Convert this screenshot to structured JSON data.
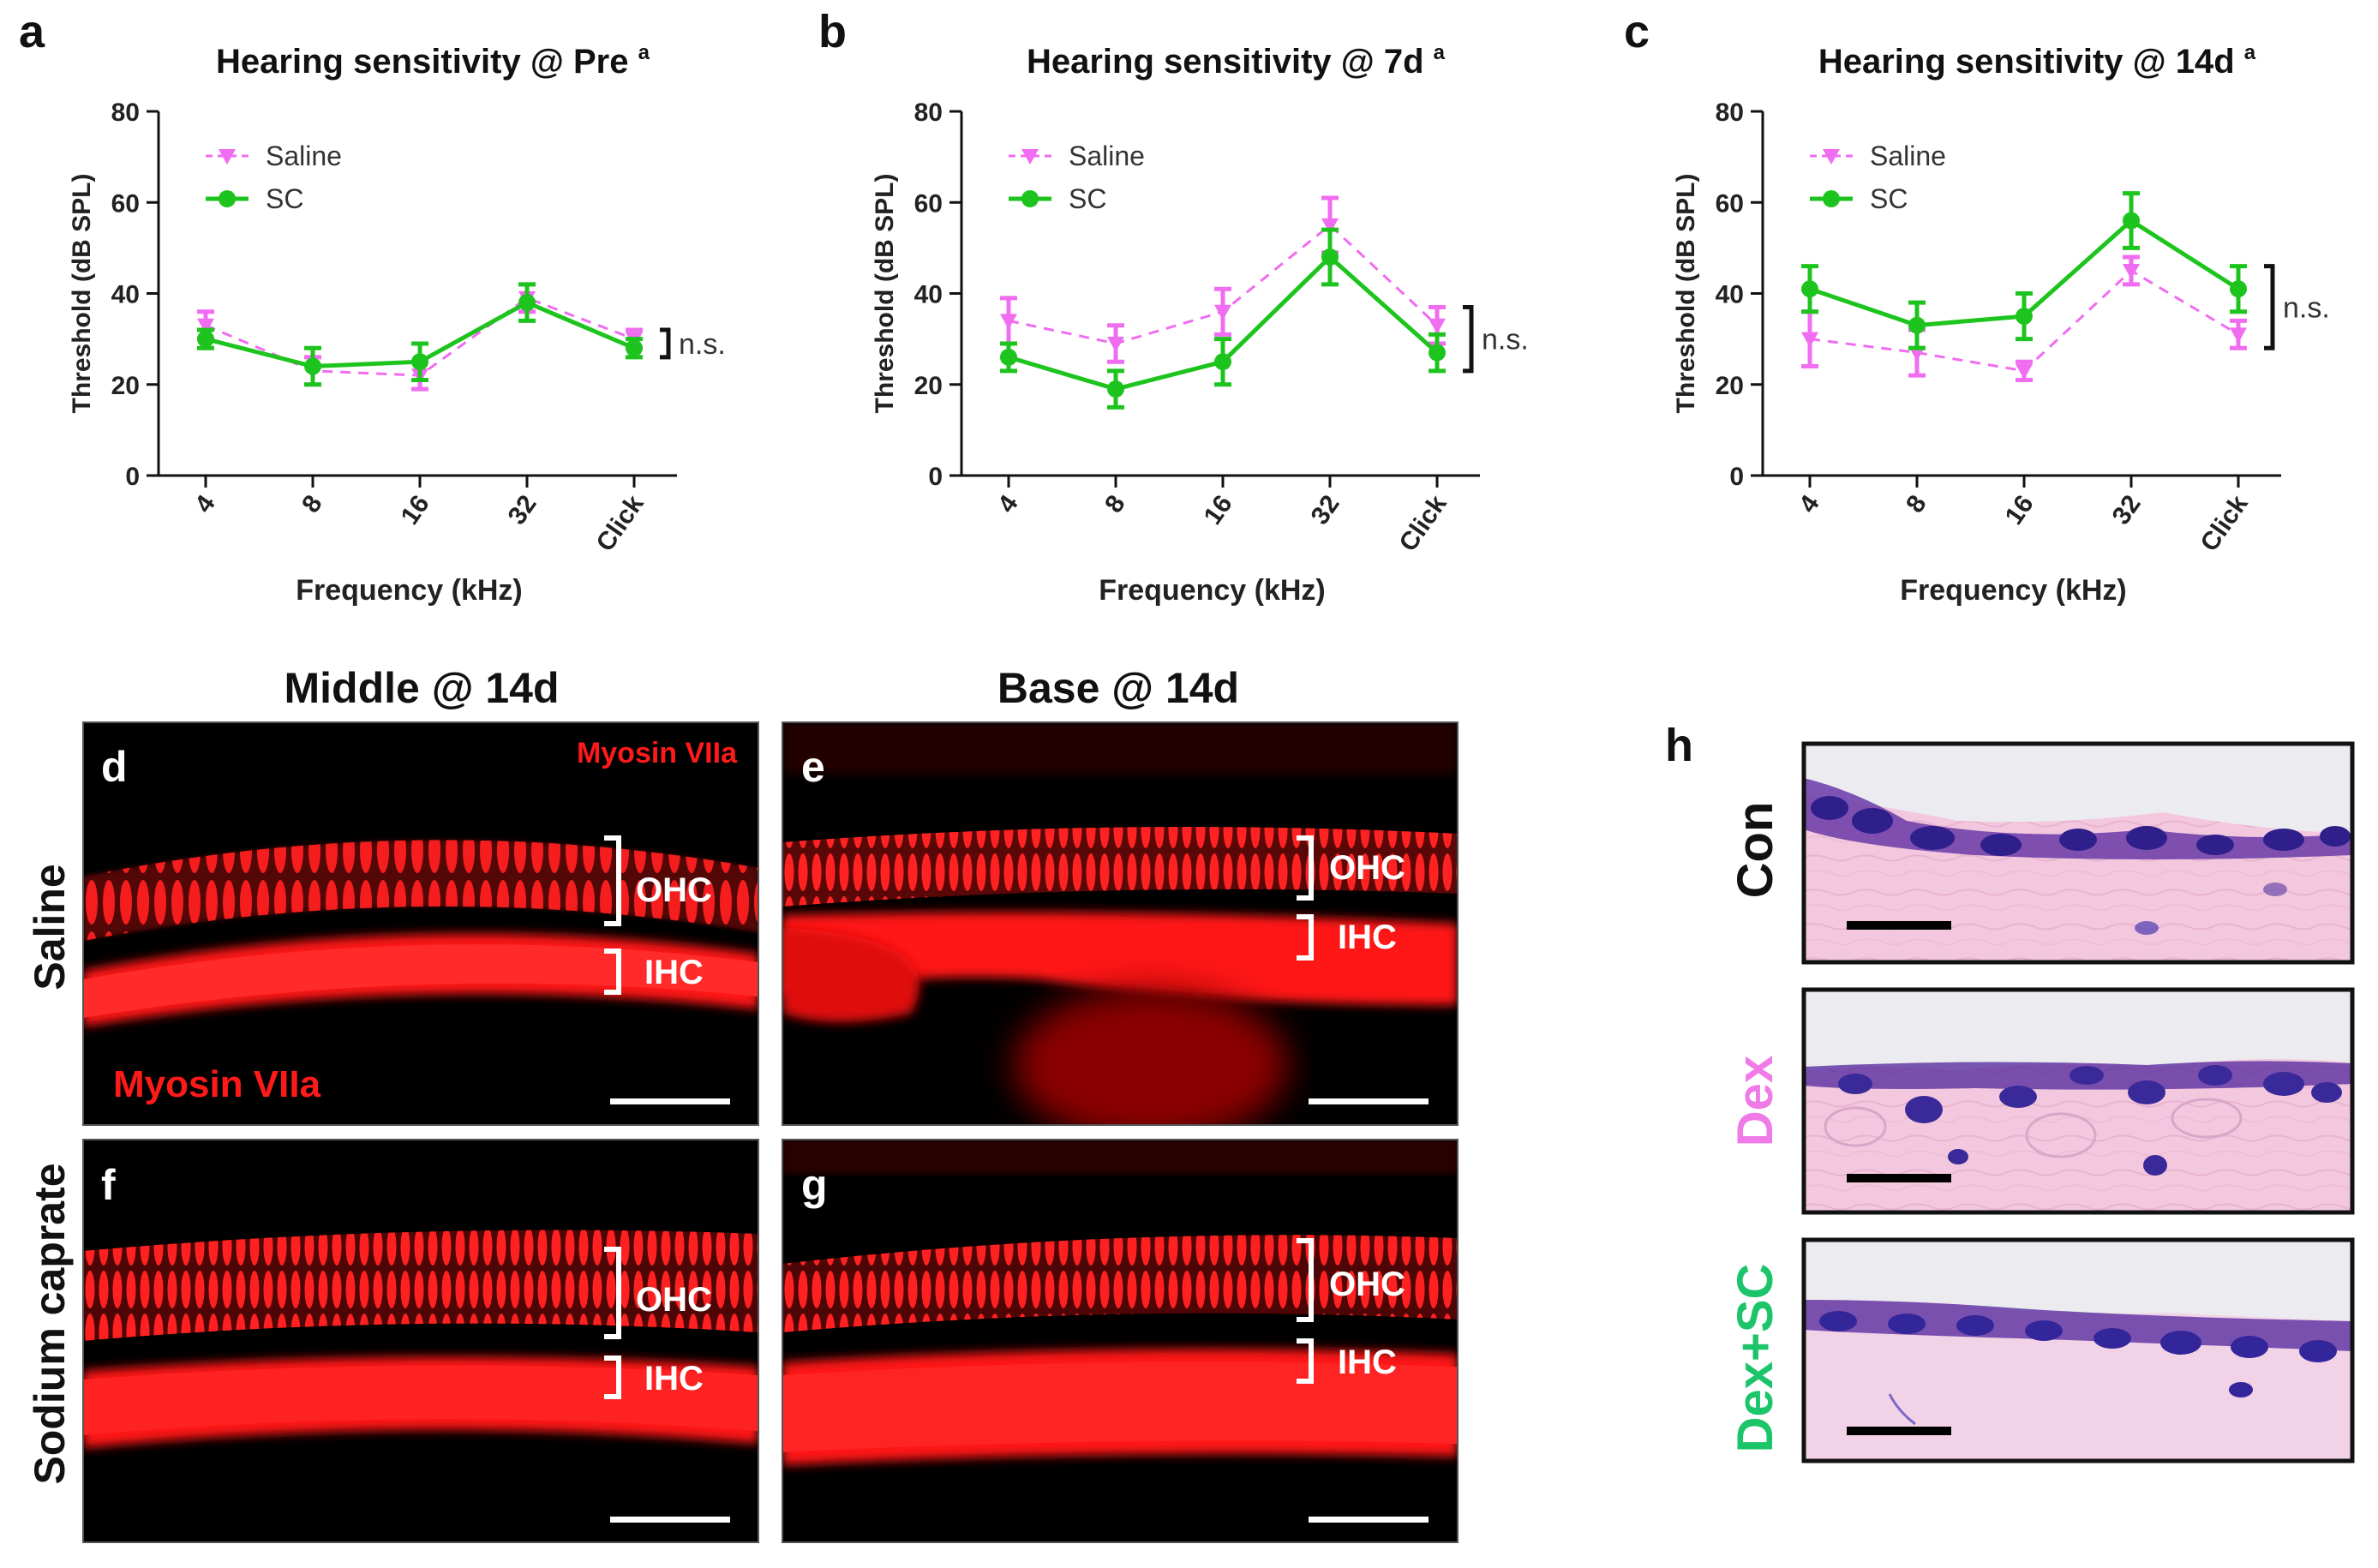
{
  "panel_letters": {
    "a": "a",
    "b": "b",
    "c": "c",
    "d": "d",
    "e": "e",
    "f": "f",
    "g": "g",
    "h": "h"
  },
  "colors": {
    "saline": "#f06cf0",
    "sc": "#1ec41e",
    "axis": "#111111",
    "fluor": "#ff1a1a",
    "he_bg": "#f2c6dc",
    "he_nuclei": "#3a2a99",
    "dex_label": "#f07ae8",
    "dexsc_label": "#1cc46a"
  },
  "chart_data": [
    {
      "type": "line",
      "title": "Hearing sensitivity @ Pre",
      "title_superscript": "a",
      "xlabel": "Frequency (kHz)",
      "ylabel": "Threshold (dB SPL)",
      "ylim": [
        0,
        80
      ],
      "yticks": [
        "0",
        "20",
        "40",
        "60",
        "80"
      ],
      "categories": [
        "4",
        "8",
        "16",
        "32",
        "Click"
      ],
      "annotation": "n.s.",
      "series": [
        {
          "name": "Saline",
          "values": [
            33,
            23,
            22,
            39,
            30
          ],
          "errors": [
            3,
            3,
            3,
            3,
            2
          ],
          "style": "dashed",
          "marker": "triangle-down"
        },
        {
          "name": "SC",
          "values": [
            30,
            24,
            25,
            38,
            28
          ],
          "errors": [
            2,
            4,
            4,
            4,
            2
          ],
          "style": "solid",
          "marker": "circle"
        }
      ]
    },
    {
      "type": "line",
      "title": "Hearing sensitivity @ 7d",
      "title_superscript": "a",
      "xlabel": "Frequency (kHz)",
      "ylabel": "Threshold (dB SPL)",
      "ylim": [
        0,
        80
      ],
      "yticks": [
        "0",
        "20",
        "40",
        "60",
        "80"
      ],
      "categories": [
        "4",
        "8",
        "16",
        "32",
        "Click"
      ],
      "annotation": "n.s.",
      "series": [
        {
          "name": "Saline",
          "values": [
            34,
            29,
            36,
            55,
            33
          ],
          "errors": [
            5,
            4,
            5,
            6,
            4
          ],
          "style": "dashed",
          "marker": "triangle-down"
        },
        {
          "name": "SC",
          "values": [
            26,
            19,
            25,
            48,
            27
          ],
          "errors": [
            3,
            4,
            5,
            6,
            4
          ],
          "style": "solid",
          "marker": "circle"
        }
      ]
    },
    {
      "type": "line",
      "title": "Hearing sensitivity @ 14d",
      "title_superscript": "a",
      "xlabel": "Frequency (kHz)",
      "ylabel": "Threshold (dB SPL)",
      "ylim": [
        0,
        80
      ],
      "yticks": [
        "0",
        "20",
        "40",
        "60",
        "80"
      ],
      "categories": [
        "4",
        "8",
        "16",
        "32",
        "Click"
      ],
      "annotation": "n.s.",
      "series": [
        {
          "name": "Saline",
          "values": [
            30,
            27,
            23,
            45,
            31
          ],
          "errors": [
            6,
            5,
            2,
            3,
            3
          ],
          "style": "dashed",
          "marker": "triangle-down"
        },
        {
          "name": "SC",
          "values": [
            41,
            33,
            35,
            56,
            41
          ],
          "errors": [
            5,
            5,
            5,
            6,
            5
          ],
          "style": "solid",
          "marker": "circle"
        }
      ]
    }
  ],
  "micro": {
    "col_middle": "Middle @ 14d",
    "col_base": "Base @ 14d",
    "row_saline": "Saline",
    "row_sc": "Sodium caprate",
    "stain_top": "Myosin VIIa",
    "stain_bottom": "Myosin VIIa",
    "ohc": "OHC",
    "ihc": "IHC"
  },
  "histology": {
    "con": "Con",
    "dex": "Dex",
    "dexsc": "Dex+SC"
  }
}
